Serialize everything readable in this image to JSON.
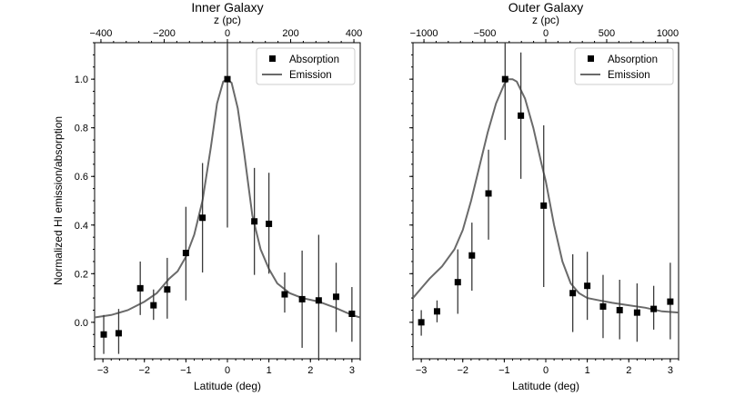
{
  "chart_data": [
    {
      "type": "scatter",
      "title": "Inner Galaxy",
      "xlabel": "Latitude (deg)",
      "ylabel": "Normalized HI emission/absorption",
      "top_xlabel": "z (pc)",
      "xlim": [
        -3.2,
        3.2
      ],
      "ylim": [
        -0.15,
        1.15
      ],
      "xticks": [
        -3,
        -2,
        -1,
        0,
        1,
        2,
        3
      ],
      "yticks": [
        0.0,
        0.2,
        0.4,
        0.6,
        0.8,
        1.0
      ],
      "top_xlim": [
        -420,
        420
      ],
      "top_xticks": [
        -400,
        -200,
        0,
        200,
        400
      ],
      "legend": {
        "placement": "top-right",
        "entries": [
          "Absorption",
          "Emission"
        ]
      },
      "series": [
        {
          "name": "Absorption",
          "kind": "errorbar",
          "x": [
            -2.98,
            -2.62,
            -2.1,
            -1.78,
            -1.45,
            -1.0,
            -0.6,
            0.0,
            0.65,
            1.0,
            1.38,
            1.8,
            2.2,
            2.62,
            3.0
          ],
          "y": [
            -0.05,
            -0.045,
            0.14,
            0.07,
            0.135,
            0.285,
            0.43,
            1.0,
            0.415,
            0.405,
            0.115,
            0.095,
            0.09,
            0.105,
            0.035
          ],
          "yerr_low": [
            -0.13,
            -0.13,
            0.03,
            0.01,
            0.015,
            0.09,
            0.205,
            0.39,
            0.195,
            0.2,
            0.04,
            -0.105,
            -0.15,
            -0.04,
            -0.08
          ],
          "yerr_high": [
            0.03,
            0.055,
            0.25,
            0.135,
            0.265,
            0.475,
            0.655,
            1.16,
            0.635,
            0.615,
            0.205,
            0.295,
            0.36,
            0.245,
            0.145
          ]
        },
        {
          "name": "Emission",
          "kind": "line",
          "x": [
            -3.2,
            -2.8,
            -2.4,
            -2.0,
            -1.7,
            -1.4,
            -1.2,
            -1.0,
            -0.8,
            -0.6,
            -0.4,
            -0.25,
            -0.1,
            0.0,
            0.1,
            0.25,
            0.4,
            0.6,
            0.8,
            1.0,
            1.2,
            1.5,
            1.8,
            2.2,
            2.6,
            3.0,
            3.2
          ],
          "y": [
            0.02,
            0.03,
            0.05,
            0.085,
            0.12,
            0.18,
            0.21,
            0.27,
            0.36,
            0.5,
            0.72,
            0.9,
            0.99,
            1.0,
            0.985,
            0.88,
            0.7,
            0.44,
            0.3,
            0.22,
            0.16,
            0.12,
            0.1,
            0.085,
            0.06,
            0.03,
            0.02
          ]
        }
      ]
    },
    {
      "type": "scatter",
      "title": "Outer Galaxy",
      "xlabel": "Latitude (deg)",
      "ylabel": "",
      "top_xlabel": "z (pc)",
      "xlim": [
        -3.2,
        3.2
      ],
      "ylim": [
        -0.15,
        1.15
      ],
      "xticks": [
        -3,
        -2,
        -1,
        0,
        1,
        2,
        3
      ],
      "yticks": [
        0.0,
        0.2,
        0.4,
        0.6,
        0.8,
        1.0
      ],
      "top_xlim": [
        -1090,
        1090
      ],
      "top_xticks": [
        -1000,
        -500,
        0,
        500,
        1000
      ],
      "legend": {
        "placement": "top-right",
        "entries": [
          "Absorption",
          "Emission"
        ]
      },
      "series": [
        {
          "name": "Absorption",
          "kind": "errorbar",
          "x": [
            -3.0,
            -2.62,
            -2.12,
            -1.78,
            -1.38,
            -0.98,
            -0.6,
            -0.05,
            0.65,
            1.0,
            1.38,
            1.78,
            2.2,
            2.6,
            3.0
          ],
          "y": [
            0.0,
            0.045,
            0.165,
            0.275,
            0.53,
            1.0,
            0.85,
            0.48,
            0.12,
            0.15,
            0.065,
            0.05,
            0.04,
            0.055,
            0.085
          ],
          "yerr_low": [
            -0.055,
            0.0,
            0.035,
            0.13,
            0.34,
            0.75,
            0.59,
            0.145,
            -0.04,
            0.01,
            -0.065,
            -0.07,
            -0.08,
            -0.03,
            -0.07
          ],
          "yerr_high": [
            0.05,
            0.09,
            0.3,
            0.41,
            0.71,
            1.16,
            1.11,
            0.81,
            0.28,
            0.29,
            0.195,
            0.175,
            0.16,
            0.15,
            0.245
          ]
        },
        {
          "name": "Emission",
          "kind": "line",
          "x": [
            -3.2,
            -3.0,
            -2.8,
            -2.5,
            -2.2,
            -2.0,
            -1.8,
            -1.6,
            -1.4,
            -1.2,
            -1.0,
            -0.9,
            -0.8,
            -0.7,
            -0.5,
            -0.3,
            -0.1,
            0.0,
            0.2,
            0.4,
            0.6,
            0.8,
            1.0,
            1.3,
            1.6,
            2.0,
            2.4,
            2.8,
            3.2
          ],
          "y": [
            0.1,
            0.14,
            0.18,
            0.23,
            0.3,
            0.38,
            0.5,
            0.64,
            0.78,
            0.9,
            0.98,
            1.0,
            1.0,
            0.99,
            0.92,
            0.8,
            0.65,
            0.58,
            0.4,
            0.25,
            0.16,
            0.12,
            0.1,
            0.09,
            0.08,
            0.07,
            0.06,
            0.045,
            0.04
          ]
        }
      ]
    }
  ]
}
